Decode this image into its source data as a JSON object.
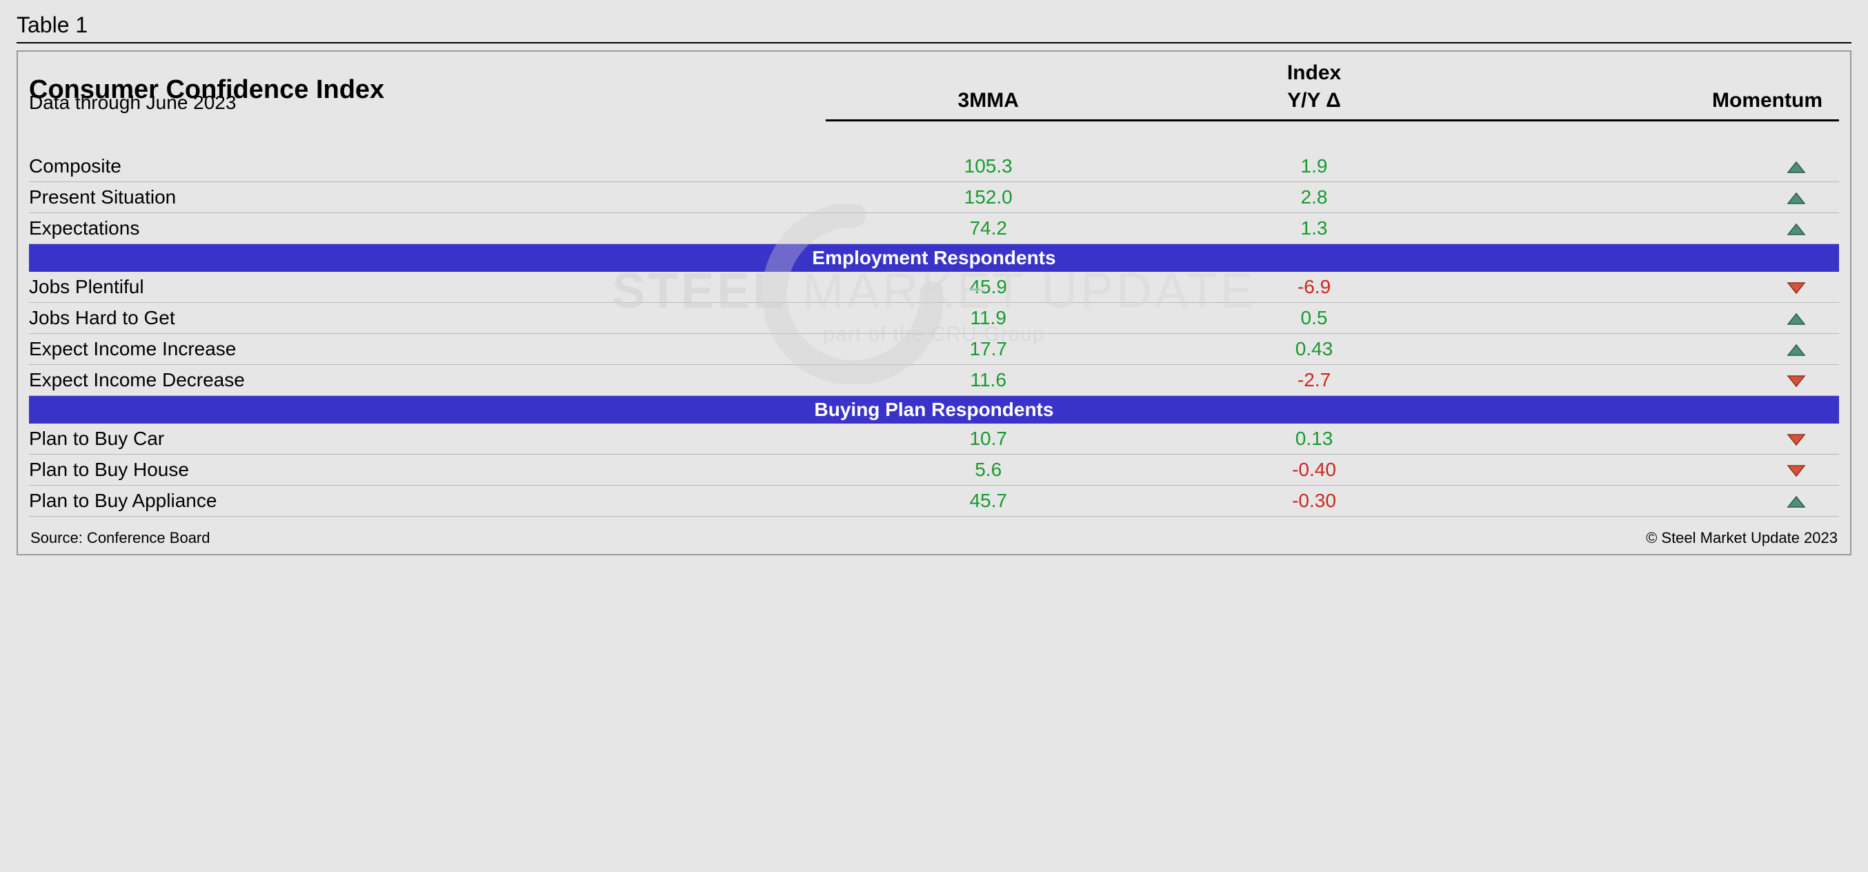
{
  "table_label": "Table 1",
  "title": "Consumer Confidence Index",
  "subtitle": "Data through June 2023",
  "columns": {
    "c1": "3MMA",
    "c2": "Y/Y Δ",
    "c3": "Momentum",
    "group": "Index"
  },
  "colors": {
    "positive": "#189a2f",
    "negative": "#c82a1e",
    "band": "#3a33c9",
    "tri_up_fill": "#4f8f7a",
    "tri_up_stroke": "#2a5c4b",
    "tri_down_fill": "#d6533b",
    "tri_down_stroke": "#8e2f1d"
  },
  "sections": [
    {
      "band": null,
      "rows": [
        {
          "label": "Composite",
          "mma": "105.3",
          "mma_sign": "pos",
          "yy": "1.9",
          "yy_sign": "pos",
          "mom": "up"
        },
        {
          "label": "Present Situation",
          "mma": "152.0",
          "mma_sign": "pos",
          "yy": "2.8",
          "yy_sign": "pos",
          "mom": "up"
        },
        {
          "label": "Expectations",
          "mma": "74.2",
          "mma_sign": "pos",
          "yy": "1.3",
          "yy_sign": "pos",
          "mom": "up"
        }
      ]
    },
    {
      "band": "Employment Respondents",
      "rows": [
        {
          "label": "Jobs Plentiful",
          "mma": "45.9",
          "mma_sign": "pos",
          "yy": "-6.9",
          "yy_sign": "neg",
          "mom": "down"
        },
        {
          "label": "Jobs Hard to Get",
          "mma": "11.9",
          "mma_sign": "pos",
          "yy": "0.5",
          "yy_sign": "pos",
          "mom": "up"
        },
        {
          "label": "Expect Income Increase",
          "mma": "17.7",
          "mma_sign": "pos",
          "yy": "0.43",
          "yy_sign": "pos",
          "mom": "up"
        },
        {
          "label": "Expect Income Decrease",
          "mma": "11.6",
          "mma_sign": "pos",
          "yy": "-2.7",
          "yy_sign": "neg",
          "mom": "down"
        }
      ]
    },
    {
      "band": "Buying Plan Respondents",
      "rows": [
        {
          "label": "Plan to Buy Car",
          "mma": "10.7",
          "mma_sign": "pos",
          "yy": "0.13",
          "yy_sign": "pos",
          "mom": "down"
        },
        {
          "label": "Plan to Buy House",
          "mma": "5.6",
          "mma_sign": "pos",
          "yy": "-0.40",
          "yy_sign": "neg",
          "mom": "down"
        },
        {
          "label": "Plan to Buy Appliance",
          "mma": "45.7",
          "mma_sign": "pos",
          "yy": "-0.30",
          "yy_sign": "neg",
          "mom": "up"
        }
      ]
    }
  ],
  "footer": {
    "source": "Source: Conference Board",
    "copyright": "© Steel Market Update 2023"
  },
  "watermark": {
    "line1a": "STEEL",
    "line1b": " MARKET ",
    "line1c": "UPDATE",
    "line2": "part of the CRU Group"
  }
}
